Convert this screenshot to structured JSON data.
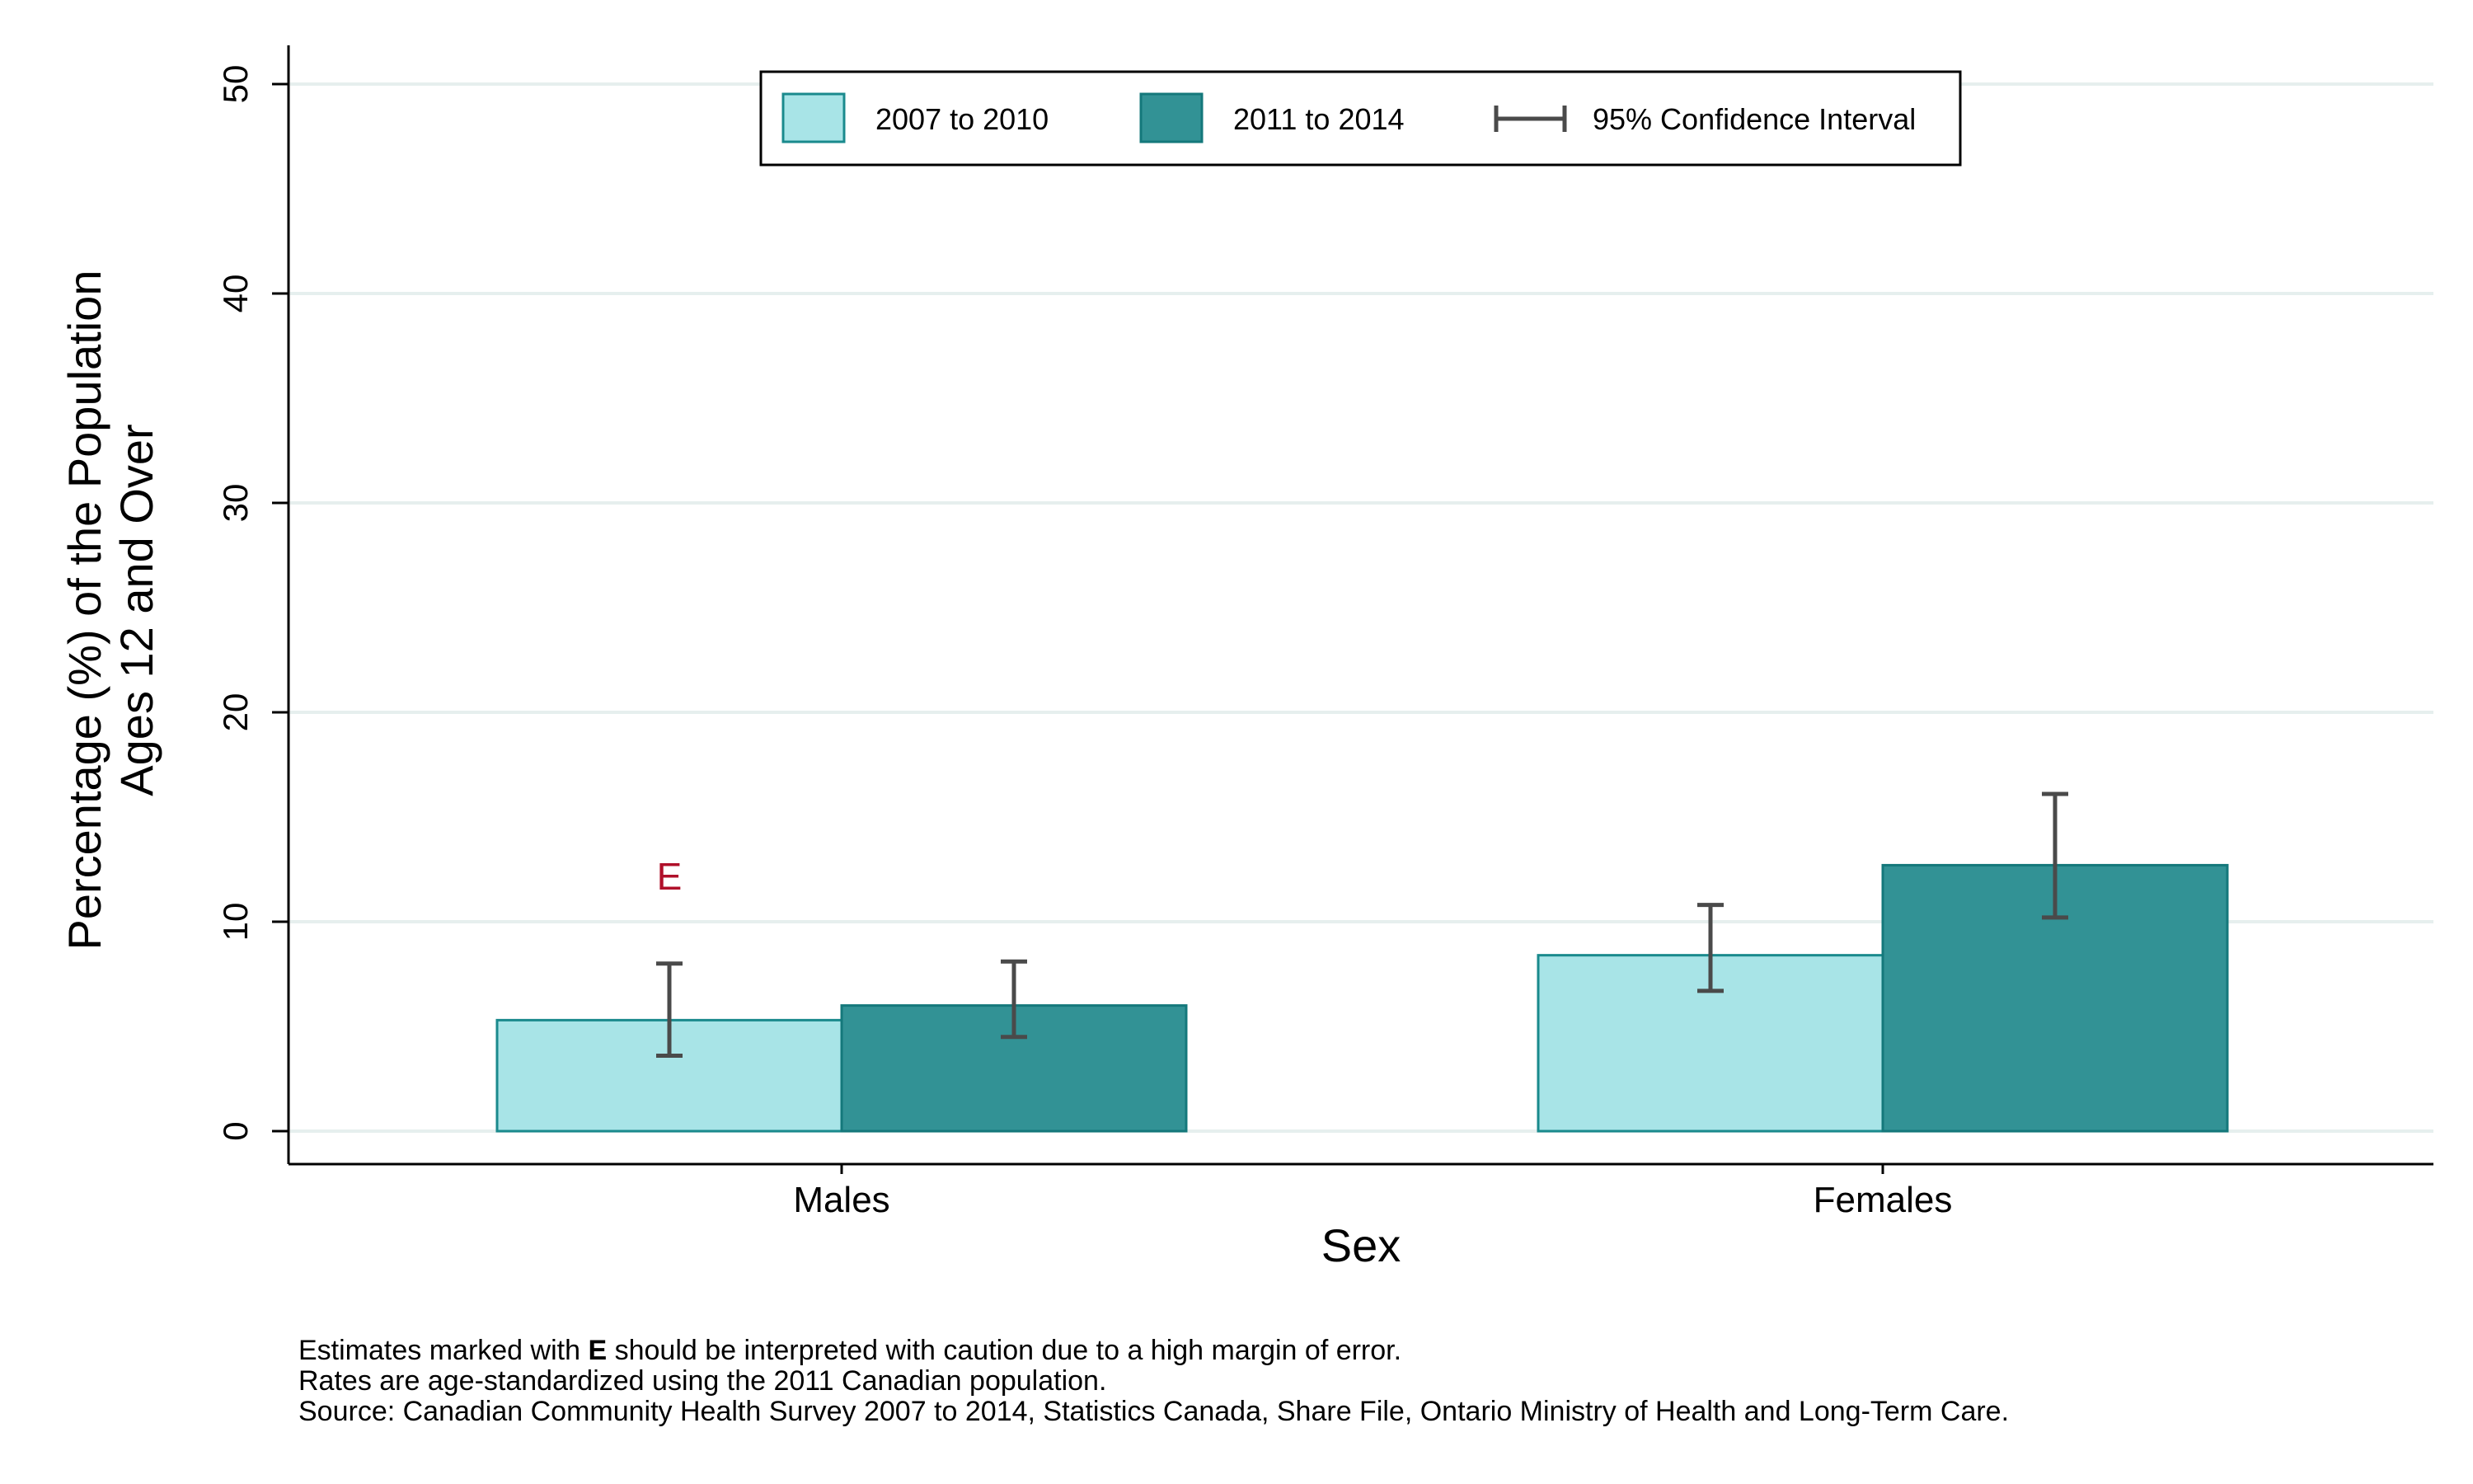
{
  "chart_data": {
    "type": "bar",
    "xlabel": "Sex",
    "ylabel_lines": [
      "Percentage (%) of the Population",
      "Ages 12 and Over"
    ],
    "ylim": [
      0,
      50
    ],
    "yticks": [
      0,
      10,
      20,
      30,
      40,
      50
    ],
    "grid": true,
    "legend_position": "top-center",
    "categories": [
      "Males",
      "Females"
    ],
    "series": [
      {
        "name": "2007 to 2010",
        "color": "#a8e4e7",
        "values": [
          5.3,
          8.4
        ],
        "ci_low": [
          3.6,
          6.7
        ],
        "ci_high": [
          8.0,
          10.8
        ],
        "flags": [
          "E",
          ""
        ]
      },
      {
        "name": "2011 to 2014",
        "color": "#329295",
        "values": [
          6.0,
          12.7
        ],
        "ci_low": [
          4.5,
          10.2
        ],
        "ci_high": [
          8.1,
          16.1
        ],
        "flags": [
          "",
          ""
        ]
      }
    ],
    "ci_legend_label": "95% Confidence Interval",
    "flag_color": "#b0102a"
  },
  "notes": {
    "line1_pre": "Estimates marked with ",
    "line1_bold": "E",
    "line1_post": " should be interpreted with caution due to a high margin of error.",
    "line2": "Rates are age-standardized using the 2011 Canadian population.",
    "line3": "Source: Canadian Community Health Survey 2007 to 2014, Statistics Canada, Share File, Ontario Ministry of Health and Long-Term Care."
  }
}
